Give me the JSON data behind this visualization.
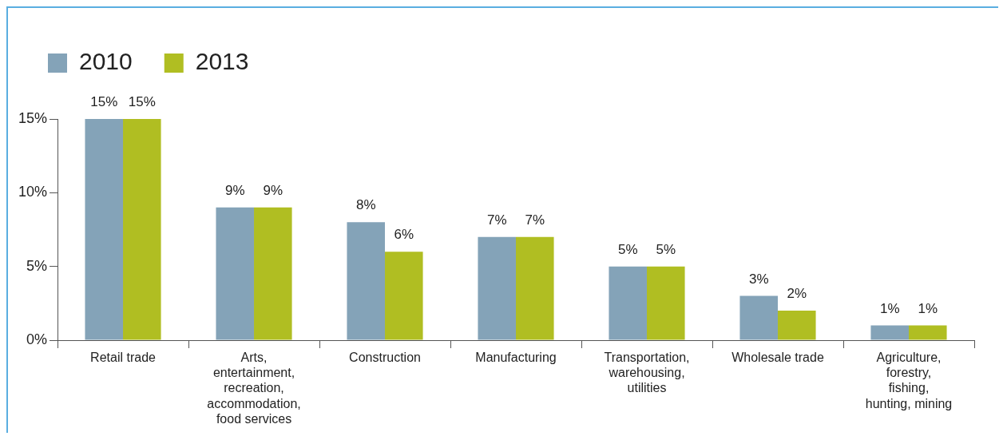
{
  "chart_data": {
    "type": "bar",
    "categories": [
      "Retail trade",
      "Arts, entertainment, recreation, accommodation, food services",
      "Construction",
      "Manufacturing",
      "Transportation, warehousing, utilities",
      "Wholesale trade",
      "Agriculture, forestry, fishing, hunting, mining"
    ],
    "series": [
      {
        "name": "2010",
        "color": "#84a3b8",
        "values": [
          15,
          9,
          8,
          7,
          5,
          3,
          1
        ],
        "value_labels": [
          "15%",
          "9%",
          "8%",
          "7%",
          "5%",
          "3%",
          "1%"
        ]
      },
      {
        "name": "2013",
        "color": "#b0be22",
        "values": [
          15,
          9,
          6,
          7,
          5,
          2,
          1
        ],
        "value_labels": [
          "15%",
          "9%",
          "6%",
          "7%",
          "5%",
          "2%",
          "1%"
        ]
      }
    ],
    "ylim": [
      0,
      15
    ],
    "yticks": [
      {
        "value": 0,
        "label": "0%"
      },
      {
        "value": 5,
        "label": "5%"
      },
      {
        "value": 10,
        "label": "10%"
      },
      {
        "value": 15,
        "label": "15%"
      }
    ],
    "grid": false,
    "legend": "top left"
  }
}
